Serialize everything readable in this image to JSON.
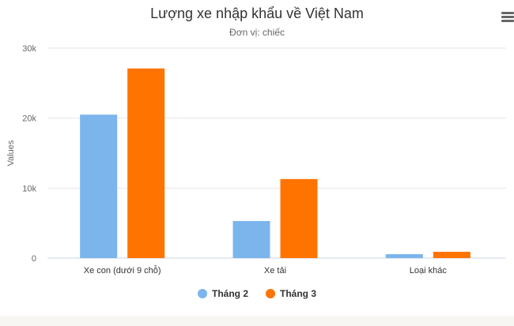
{
  "chart_data": {
    "type": "bar",
    "title": "Lượng xe nhập khẩu về Việt Nam",
    "subtitle": "Đơn vị: chiếc",
    "ylabel": "Values",
    "xlabel": "",
    "ylim": [
      0,
      30000
    ],
    "yticks": [
      0,
      10000,
      20000,
      30000
    ],
    "ytick_labels": [
      "0",
      "10k",
      "20k",
      "30k"
    ],
    "grid": true,
    "legend": "bottom",
    "categories": [
      "Xe con (dưới 9 chỗ)",
      "Xe tải",
      "Loại khác"
    ],
    "series": [
      {
        "name": "Tháng 2",
        "color": "#7cb5ec",
        "values": [
          20500,
          5300,
          560
        ]
      },
      {
        "name": "Tháng 3",
        "color": "#ff7300",
        "values": [
          27100,
          11300,
          900
        ]
      }
    ]
  },
  "menu_icon": "hamburger-menu-icon"
}
